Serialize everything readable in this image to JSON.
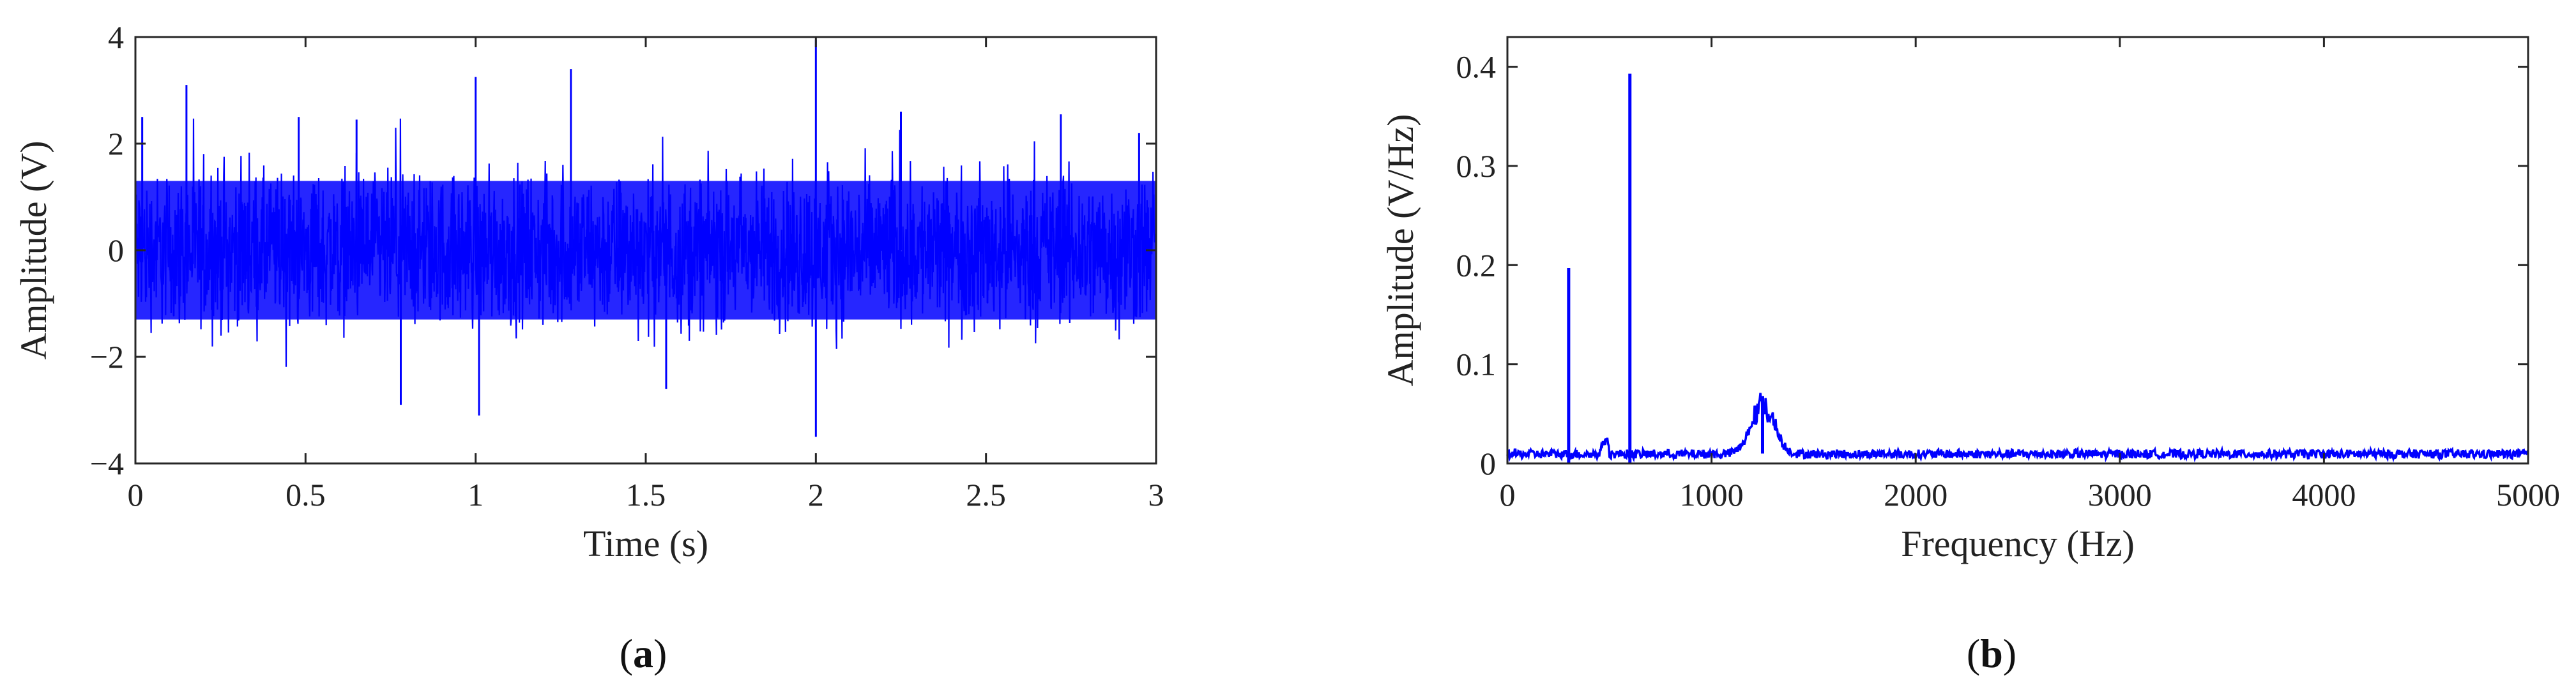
{
  "chart_data": [
    {
      "panel": "a",
      "type": "line",
      "title": "",
      "xlabel": "Time (s)",
      "ylabel": "Amplitude (V)",
      "xlim": [
        0,
        3
      ],
      "ylim": [
        -4,
        4
      ],
      "xticks": [
        0,
        0.5,
        1,
        1.5,
        2,
        2.5,
        3
      ],
      "yticks": [
        -4,
        -2,
        0,
        2,
        4
      ],
      "xtick_labels": [
        "0",
        "0.5",
        "1",
        "1.5",
        "2",
        "2.5",
        "3"
      ],
      "ytick_labels": [
        "−4",
        "−2",
        "0",
        "2",
        "4"
      ],
      "grid": false,
      "color": "#0000ff",
      "base_band": [
        -1.3,
        1.3
      ],
      "spikes": [
        {
          "x": 0.02,
          "y": 2.5
        },
        {
          "x": 0.15,
          "y": 3.1
        },
        {
          "x": 0.48,
          "y": 2.5
        },
        {
          "x": 0.65,
          "y": 2.45
        },
        {
          "x": 0.78,
          "y": -2.9
        },
        {
          "x": 1.0,
          "y": 3.25
        },
        {
          "x": 1.01,
          "y": -3.1
        },
        {
          "x": 1.28,
          "y": 3.4
        },
        {
          "x": 1.56,
          "y": -2.6
        },
        {
          "x": 2.0,
          "y": 3.95
        },
        {
          "x": 2.0,
          "y": -3.5
        },
        {
          "x": 2.25,
          "y": 2.6
        },
        {
          "x": 2.72,
          "y": 2.55
        },
        {
          "x": 2.95,
          "y": 2.2
        }
      ]
    },
    {
      "panel": "b",
      "type": "line",
      "title": "",
      "xlabel": "Frequency (Hz)",
      "ylabel": "Amplitude (V/Hz)",
      "xlim": [
        0,
        5000
      ],
      "ylim": [
        0,
        0.43
      ],
      "xticks": [
        0,
        1000,
        2000,
        3000,
        4000,
        5000
      ],
      "yticks": [
        0,
        0.1,
        0.2,
        0.3,
        0.4
      ],
      "xtick_labels": [
        "0",
        "1000",
        "2000",
        "3000",
        "4000",
        "5000"
      ],
      "ytick_labels": [
        "0",
        "0.1",
        "0.2",
        "0.3",
        "0.4"
      ],
      "grid": false,
      "color": "#0000ff",
      "noise_floor": 0.01,
      "peaks": [
        {
          "x": 300,
          "y": 0.197
        },
        {
          "x": 600,
          "y": 0.393
        },
        {
          "x": 1250,
          "y": 0.068
        }
      ]
    }
  ],
  "captions": {
    "a": {
      "open": "(",
      "letter": "a",
      "close": ")"
    },
    "b": {
      "open": "(",
      "letter": "b",
      "close": ")"
    }
  }
}
